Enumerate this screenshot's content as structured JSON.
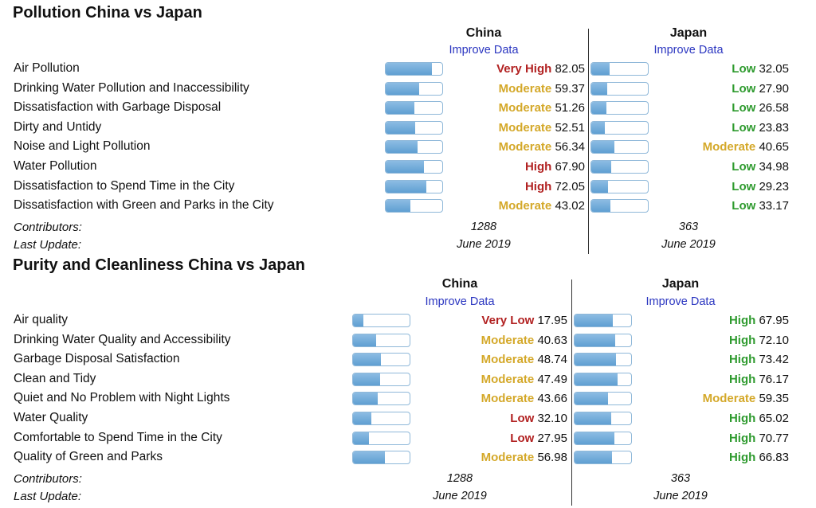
{
  "colors": {
    "Very High": "#b22222",
    "High": "#b22222",
    "Moderate": "#d4a829",
    "Low": "#2e9a2e",
    "Very Low": "#b22222"
  },
  "purity_colors": {
    "High": "#2e9a2e",
    "Moderate": "#d4a829",
    "Low": "#b22222",
    "Very Low": "#b22222"
  },
  "chart_data": [
    {
      "type": "bar",
      "title": "Pollution China vs Japan",
      "improve_label": "Improve Data",
      "contributors_label": "Contributors:",
      "last_update_label": "Last Update:",
      "ylim": [
        0,
        100
      ],
      "categories": [
        "Air Pollution",
        "Drinking Water Pollution and Inaccessibility",
        "Dissatisfaction with Garbage Disposal",
        "Dirty and Untidy",
        "Noise and Light Pollution",
        "Water Pollution",
        "Dissatisfaction to Spend Time in the City",
        "Dissatisfaction with Green and Parks in the City"
      ],
      "series": [
        {
          "name": "China",
          "values": [
            82.05,
            59.37,
            51.26,
            52.51,
            56.34,
            67.9,
            72.05,
            43.02
          ],
          "value_text": [
            "82.05",
            "59.37",
            "51.26",
            "52.51",
            "56.34",
            "67.90",
            "72.05",
            "43.02"
          ],
          "levels": [
            "Very High",
            "Moderate",
            "Moderate",
            "Moderate",
            "Moderate",
            "High",
            "High",
            "Moderate"
          ],
          "contributors": "1288",
          "last_update": "June 2019"
        },
        {
          "name": "Japan",
          "values": [
            32.05,
            27.9,
            26.58,
            23.83,
            40.65,
            34.98,
            29.23,
            33.17
          ],
          "value_text": [
            "32.05",
            "27.90",
            "26.58",
            "23.83",
            "40.65",
            "34.98",
            "29.23",
            "33.17"
          ],
          "levels": [
            "Low",
            "Low",
            "Low",
            "Low",
            "Moderate",
            "Low",
            "Low",
            "Low"
          ],
          "contributors": "363",
          "last_update": "June 2019"
        }
      ]
    },
    {
      "type": "bar",
      "title": "Purity and Cleanliness China vs Japan",
      "improve_label": "Improve Data",
      "contributors_label": "Contributors:",
      "last_update_label": "Last Update:",
      "ylim": [
        0,
        100
      ],
      "categories": [
        "Air quality",
        "Drinking Water Quality and Accessibility",
        "Garbage Disposal Satisfaction",
        "Clean and Tidy",
        "Quiet and No Problem with Night Lights",
        "Water Quality",
        "Comfortable to Spend Time in the City",
        "Quality of Green and Parks"
      ],
      "series": [
        {
          "name": "China",
          "values": [
            17.95,
            40.63,
            48.74,
            47.49,
            43.66,
            32.1,
            27.95,
            56.98
          ],
          "value_text": [
            "17.95",
            "40.63",
            "48.74",
            "47.49",
            "43.66",
            "32.10",
            "27.95",
            "56.98"
          ],
          "levels": [
            "Very Low",
            "Moderate",
            "Moderate",
            "Moderate",
            "Moderate",
            "Low",
            "Low",
            "Moderate"
          ],
          "contributors": "1288",
          "last_update": "June 2019"
        },
        {
          "name": "Japan",
          "values": [
            67.95,
            72.1,
            73.42,
            76.17,
            59.35,
            65.02,
            70.77,
            66.83
          ],
          "value_text": [
            "67.95",
            "72.10",
            "73.42",
            "76.17",
            "59.35",
            "65.02",
            "70.77",
            "66.83"
          ],
          "levels": [
            "High",
            "High",
            "High",
            "High",
            "Moderate",
            "High",
            "High",
            "High"
          ],
          "contributors": "363",
          "last_update": "June 2019"
        }
      ]
    }
  ]
}
